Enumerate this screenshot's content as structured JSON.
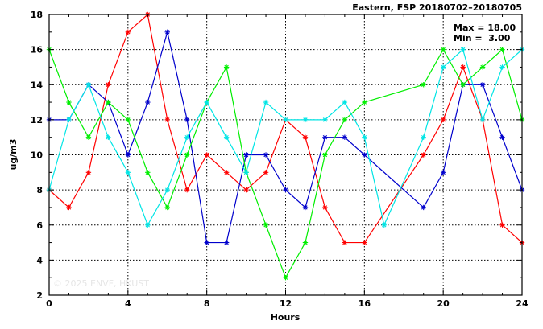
{
  "chart_data": {
    "type": "line",
    "title": "Eastern, FSP 20180702–20180705",
    "xlabel": "Hours",
    "ylabel": "ug/m3",
    "xlim": [
      0,
      24
    ],
    "ylim": [
      2,
      18
    ],
    "xticks": [
      0,
      4,
      8,
      12,
      16,
      20,
      24
    ],
    "yticks": [
      2,
      4,
      6,
      8,
      10,
      12,
      14,
      16,
      18
    ],
    "grid": true,
    "max_label": "Max = 18.00",
    "min_label": "Min =  3.00",
    "watermark": "© 2025  ENVF, HKUST",
    "series": [
      {
        "color": "#ff0000",
        "x": [
          0,
          1,
          2,
          3,
          4,
          5,
          6,
          7,
          8,
          9,
          10,
          11,
          12,
          13,
          14,
          15,
          16,
          19,
          20,
          21,
          22,
          23,
          24
        ],
        "y": [
          8,
          7,
          9,
          14,
          17,
          18,
          12,
          8,
          10,
          9,
          8,
          9,
          12,
          11,
          7,
          5,
          5,
          10,
          12,
          15,
          12,
          6,
          5
        ]
      },
      {
        "color": "#0000cc",
        "x": [
          0,
          1,
          2,
          3,
          4,
          5,
          6,
          7,
          8,
          9,
          10,
          11,
          12,
          13,
          14,
          15,
          16,
          19,
          20,
          21,
          22,
          23,
          24
        ],
        "y": [
          12,
          12,
          14,
          13,
          10,
          13,
          17,
          12,
          5,
          5,
          10,
          10,
          8,
          7,
          11,
          11,
          10,
          7,
          9,
          14,
          14,
          11,
          8
        ]
      },
      {
        "color": "#00ee00",
        "x": [
          0,
          1,
          2,
          3,
          4,
          5,
          6,
          7,
          8,
          9,
          10,
          11,
          12,
          13,
          14,
          15,
          16,
          19,
          20,
          21,
          22,
          23,
          24
        ],
        "y": [
          16,
          13,
          11,
          13,
          12,
          9,
          7,
          10,
          13,
          15,
          9,
          6,
          3,
          5,
          10,
          12,
          13,
          14,
          16,
          14,
          15,
          16,
          12
        ]
      },
      {
        "color": "#00e5e5",
        "x": [
          0,
          1,
          2,
          3,
          4,
          5,
          6,
          7,
          8,
          9,
          10,
          11,
          12,
          13,
          14,
          15,
          16,
          17,
          19,
          20,
          21,
          22,
          23,
          24
        ],
        "y": [
          8,
          12,
          14,
          11,
          9,
          6,
          8,
          11,
          13,
          11,
          9,
          13,
          12,
          12,
          12,
          13,
          11,
          6,
          11,
          15,
          16,
          12,
          15,
          16
        ]
      }
    ]
  }
}
